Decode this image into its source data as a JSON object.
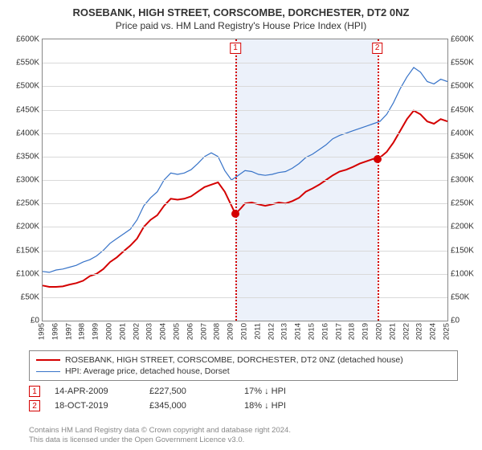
{
  "title": "ROSEBANK, HIGH STREET, CORSCOMBE, DORCHESTER, DT2 0NZ",
  "subtitle": "Price paid vs. HM Land Registry's House Price Index (HPI)",
  "chart": {
    "type": "line",
    "background_color": "#ffffff",
    "grid_color": "#d9d9d9",
    "border_color": "#888888",
    "ylim": [
      0,
      600000
    ],
    "ytick_step": 50000,
    "ytick_prefix": "£",
    "ytick_suffix": "K",
    "x_years": [
      1995,
      1996,
      1997,
      1998,
      1999,
      2000,
      2001,
      2002,
      2003,
      2004,
      2005,
      2006,
      2007,
      2008,
      2009,
      2010,
      2011,
      2012,
      2013,
      2014,
      2015,
      2016,
      2017,
      2018,
      2019,
      2020,
      2021,
      2022,
      2023,
      2024,
      2025
    ],
    "shade": {
      "from_year": 2009.29,
      "to_year": 2019.8,
      "color": "rgba(220,230,245,0.55)"
    },
    "series": [
      {
        "name": "property",
        "label": "ROSEBANK, HIGH STREET, CORSCOMBE, DORCHESTER, DT2 0NZ (detached house)",
        "color": "#d40000",
        "width": 2,
        "data": [
          [
            1995,
            75000
          ],
          [
            1995.5,
            72000
          ],
          [
            1996,
            72000
          ],
          [
            1996.5,
            73000
          ],
          [
            1997,
            77000
          ],
          [
            1997.5,
            80000
          ],
          [
            1998,
            85000
          ],
          [
            1998.5,
            95000
          ],
          [
            1999,
            100000
          ],
          [
            1999.5,
            110000
          ],
          [
            2000,
            125000
          ],
          [
            2000.5,
            135000
          ],
          [
            2001,
            148000
          ],
          [
            2001.5,
            160000
          ],
          [
            2002,
            175000
          ],
          [
            2002.5,
            200000
          ],
          [
            2003,
            215000
          ],
          [
            2003.5,
            225000
          ],
          [
            2004,
            245000
          ],
          [
            2004.5,
            260000
          ],
          [
            2005,
            258000
          ],
          [
            2005.5,
            260000
          ],
          [
            2006,
            265000
          ],
          [
            2006.5,
            275000
          ],
          [
            2007,
            285000
          ],
          [
            2007.5,
            290000
          ],
          [
            2008,
            295000
          ],
          [
            2008.5,
            275000
          ],
          [
            2009,
            245000
          ],
          [
            2009.29,
            227500
          ],
          [
            2009.7,
            240000
          ],
          [
            2010,
            250000
          ],
          [
            2010.5,
            252000
          ],
          [
            2011,
            248000
          ],
          [
            2011.5,
            245000
          ],
          [
            2012,
            248000
          ],
          [
            2012.5,
            252000
          ],
          [
            2013,
            250000
          ],
          [
            2013.5,
            255000
          ],
          [
            2014,
            262000
          ],
          [
            2014.5,
            275000
          ],
          [
            2015,
            282000
          ],
          [
            2015.5,
            290000
          ],
          [
            2016,
            300000
          ],
          [
            2016.5,
            310000
          ],
          [
            2017,
            318000
          ],
          [
            2017.5,
            322000
          ],
          [
            2018,
            328000
          ],
          [
            2018.5,
            335000
          ],
          [
            2019,
            340000
          ],
          [
            2019.5,
            345000
          ],
          [
            2019.8,
            345000
          ],
          [
            2020,
            348000
          ],
          [
            2020.5,
            360000
          ],
          [
            2021,
            380000
          ],
          [
            2021.5,
            405000
          ],
          [
            2022,
            430000
          ],
          [
            2022.5,
            448000
          ],
          [
            2023,
            440000
          ],
          [
            2023.5,
            425000
          ],
          [
            2024,
            420000
          ],
          [
            2024.5,
            430000
          ],
          [
            2025,
            425000
          ]
        ]
      },
      {
        "name": "hpi",
        "label": "HPI: Average price, detached house, Dorset",
        "color": "#3773c8",
        "width": 1.2,
        "data": [
          [
            1995,
            105000
          ],
          [
            1995.5,
            103000
          ],
          [
            1996,
            108000
          ],
          [
            1996.5,
            110000
          ],
          [
            1997,
            114000
          ],
          [
            1997.5,
            118000
          ],
          [
            1998,
            125000
          ],
          [
            1998.5,
            130000
          ],
          [
            1999,
            138000
          ],
          [
            1999.5,
            150000
          ],
          [
            2000,
            165000
          ],
          [
            2000.5,
            175000
          ],
          [
            2001,
            185000
          ],
          [
            2001.5,
            195000
          ],
          [
            2002,
            215000
          ],
          [
            2002.5,
            245000
          ],
          [
            2003,
            262000
          ],
          [
            2003.5,
            275000
          ],
          [
            2004,
            300000
          ],
          [
            2004.5,
            315000
          ],
          [
            2005,
            312000
          ],
          [
            2005.5,
            315000
          ],
          [
            2006,
            322000
          ],
          [
            2006.5,
            335000
          ],
          [
            2007,
            350000
          ],
          [
            2007.5,
            358000
          ],
          [
            2008,
            350000
          ],
          [
            2008.5,
            320000
          ],
          [
            2009,
            300000
          ],
          [
            2009.5,
            310000
          ],
          [
            2010,
            320000
          ],
          [
            2010.5,
            318000
          ],
          [
            2011,
            312000
          ],
          [
            2011.5,
            310000
          ],
          [
            2012,
            312000
          ],
          [
            2012.5,
            316000
          ],
          [
            2013,
            318000
          ],
          [
            2013.5,
            325000
          ],
          [
            2014,
            335000
          ],
          [
            2014.5,
            348000
          ],
          [
            2015,
            355000
          ],
          [
            2015.5,
            365000
          ],
          [
            2016,
            375000
          ],
          [
            2016.5,
            388000
          ],
          [
            2017,
            395000
          ],
          [
            2017.5,
            400000
          ],
          [
            2018,
            405000
          ],
          [
            2018.5,
            410000
          ],
          [
            2019,
            415000
          ],
          [
            2019.5,
            420000
          ],
          [
            2020,
            425000
          ],
          [
            2020.5,
            440000
          ],
          [
            2021,
            465000
          ],
          [
            2021.5,
            495000
          ],
          [
            2022,
            520000
          ],
          [
            2022.5,
            540000
          ],
          [
            2023,
            530000
          ],
          [
            2023.5,
            510000
          ],
          [
            2024,
            505000
          ],
          [
            2024.5,
            515000
          ],
          [
            2025,
            510000
          ]
        ]
      }
    ],
    "markers": [
      {
        "id": "1",
        "year": 2009.29,
        "price": 227500,
        "line_color": "#d40000",
        "label_border": "#d40000"
      },
      {
        "id": "2",
        "year": 2019.8,
        "price": 345000,
        "line_color": "#d40000",
        "label_border": "#d40000"
      }
    ],
    "marker_dot_color": "#d40000"
  },
  "events": [
    {
      "id": "1",
      "date": "14-APR-2009",
      "price": "£227,500",
      "delta": "17% ↓ HPI",
      "border": "#d40000"
    },
    {
      "id": "2",
      "date": "18-OCT-2019",
      "price": "£345,000",
      "delta": "18% ↓ HPI",
      "border": "#d40000"
    }
  ],
  "footer": {
    "line1": "Contains HM Land Registry data © Crown copyright and database right 2024.",
    "line2": "This data is licensed under the Open Government Licence v3.0."
  }
}
